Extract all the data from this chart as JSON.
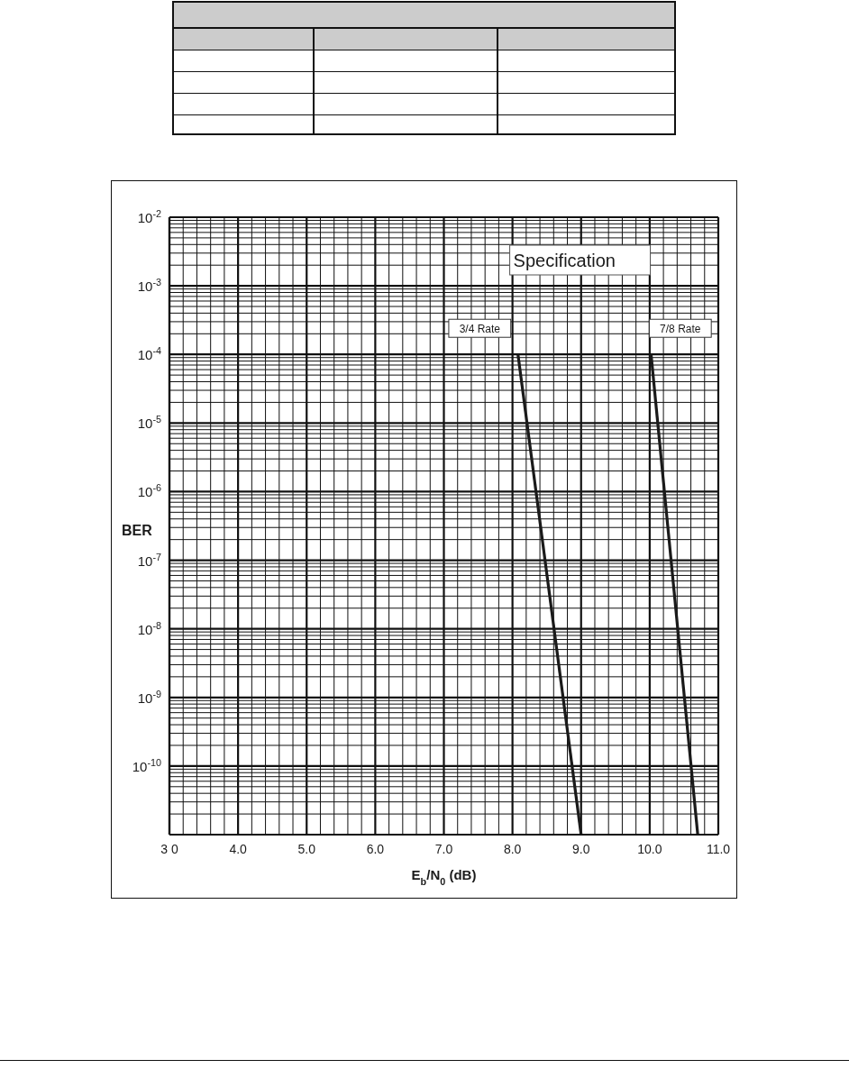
{
  "chart_data": {
    "type": "line",
    "xlabel": "E$_{b}$/N$_{0}$ (dB)",
    "ylabel": "BER",
    "annotations": [
      "Specification"
    ],
    "series": [
      {
        "name": "3/4 Rate",
        "color": "#1a1a1a",
        "x": [
          8.08,
          9.0
        ],
        "values": [
          0.0001,
          1e-11
        ]
      },
      {
        "name": "7/8 Rate",
        "color": "#1a1a1a",
        "x": [
          10.02,
          10.7
        ],
        "values": [
          0.0001,
          1e-11
        ]
      }
    ],
    "xlim": [
      3,
      11
    ],
    "xticks": [
      {
        "value": 3,
        "label": "3 0"
      },
      {
        "value": 4,
        "label": "4.0"
      },
      {
        "value": 5,
        "label": "5.0"
      },
      {
        "value": 6,
        "label": "6.0"
      },
      {
        "value": 7,
        "label": "7.0"
      },
      {
        "value": 8,
        "label": "8.0"
      },
      {
        "value": 9,
        "label": "9.0"
      },
      {
        "value": 10,
        "label": "10.0"
      },
      {
        "value": 11,
        "label": "11.0"
      }
    ],
    "ylim": [
      1e-11,
      0.01
    ],
    "yticks": [
      {
        "value": 0.01,
        "label": "10$^{-2}$"
      },
      {
        "value": 0.001,
        "label": "10$^{-3}$"
      },
      {
        "value": 0.0001,
        "label": "10$^{-4}$"
      },
      {
        "value": 1e-05,
        "label": "10$^{-5}$"
      },
      {
        "value": 1e-06,
        "label": "10$^{-6}$"
      },
      {
        "value": 1e-07,
        "label": "10$^{-7}$"
      },
      {
        "value": 1e-08,
        "label": "10$^{-8}$"
      },
      {
        "value": 1e-09,
        "label": "10$^{-9}$"
      },
      {
        "value": 1e-10,
        "label": "10$^{-10}$"
      }
    ],
    "log": "y",
    "grid": true,
    "marker": "none",
    "line_style": "solid"
  }
}
